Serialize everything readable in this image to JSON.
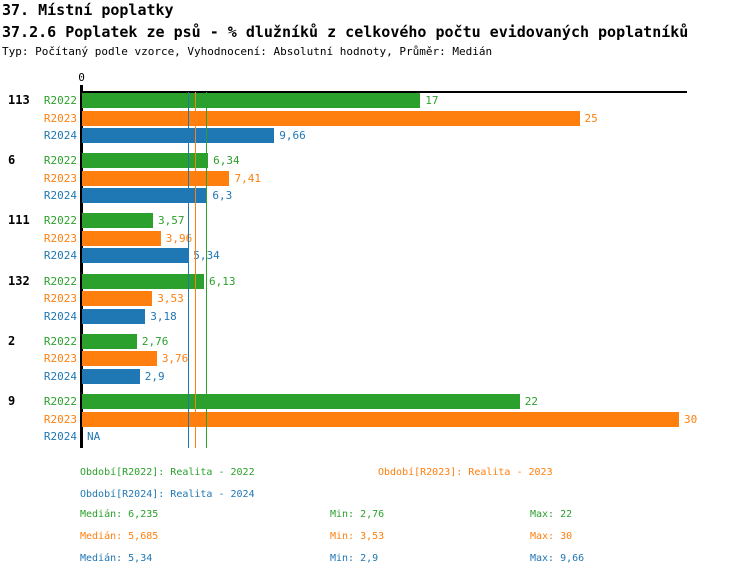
{
  "header": {
    "title": "37. Místní poplatky",
    "subtitle": "37.2.6 Poplatek ze psů - % dlužníků z celkového počtu evidovaných poplatníků",
    "meta": "Typ: Počítaný podle vzorce, Vyhodnocení: Absolutní hodnoty, Průměr: Medián"
  },
  "colors": {
    "r2022": "#2ca02c",
    "r2023": "#ff7f0e",
    "r2024": "#1f77b4",
    "axis": "#000000"
  },
  "chart_data": {
    "type": "bar",
    "orientation": "horizontal",
    "origin_tick_label": "0",
    "xlim": [
      0,
      33.5
    ],
    "grid": false,
    "legend_position": "bottom",
    "series_labels": [
      "R2022",
      "R2023",
      "R2024"
    ],
    "groups": [
      {
        "label": "113",
        "values": [
          17,
          25,
          9.66
        ],
        "display": [
          "17",
          "25",
          "9,66"
        ]
      },
      {
        "label": "6",
        "values": [
          6.34,
          7.41,
          6.3
        ],
        "display": [
          "6,34",
          "7,41",
          "6,3"
        ]
      },
      {
        "label": "111",
        "values": [
          3.57,
          3.96,
          5.34
        ],
        "display": [
          "3,57",
          "3,96",
          "5,34"
        ]
      },
      {
        "label": "132",
        "values": [
          6.13,
          3.53,
          3.18
        ],
        "display": [
          "6,13",
          "3,53",
          "3,18"
        ]
      },
      {
        "label": "2",
        "values": [
          2.76,
          3.76,
          2.9
        ],
        "display": [
          "2,76",
          "3,76",
          "2,9"
        ]
      },
      {
        "label": "9",
        "values": [
          22,
          30,
          null
        ],
        "display": [
          "22",
          "30",
          "NA"
        ]
      }
    ],
    "median_lines": [
      {
        "series": "R2022",
        "value": 6.235,
        "color": "#2ca02c"
      },
      {
        "series": "R2023",
        "value": 5.685,
        "color": "#ff7f0e"
      },
      {
        "series": "R2024",
        "value": 5.34,
        "color": "#1f77b4"
      }
    ]
  },
  "legend": [
    {
      "label": "Období[R2022]: Realita - 2022",
      "color": "#2ca02c"
    },
    {
      "label": "Období[R2023]: Realita - 2023",
      "color": "#ff7f0e"
    },
    {
      "label": "Období[R2024]: Realita - 2024",
      "color": "#1f77b4"
    }
  ],
  "stats": [
    {
      "median": "Medián: 6,235",
      "min": "Min: 2,76",
      "max": "Max: 22",
      "color": "#2ca02c"
    },
    {
      "median": "Medián: 5,685",
      "min": "Min: 3,53",
      "max": "Max: 30",
      "color": "#ff7f0e"
    },
    {
      "median": "Medián: 5,34",
      "min": "Min: 2,9",
      "max": "Max: 9,66",
      "color": "#1f77b4"
    }
  ]
}
